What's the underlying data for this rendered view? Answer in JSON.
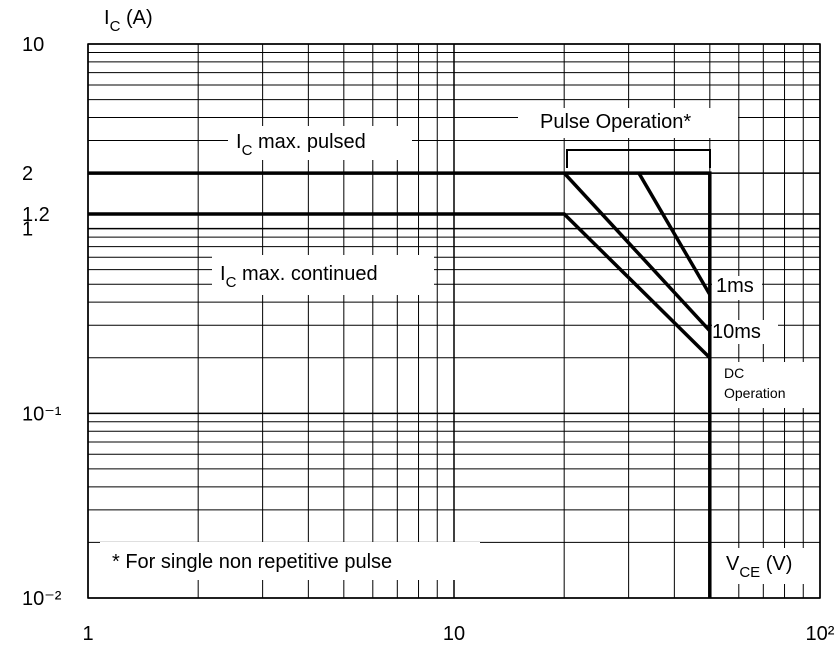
{
  "chart_data": {
    "type": "line",
    "log_x": true,
    "log_y": true,
    "grid": true,
    "minor_grid": true,
    "xlim": [
      1,
      100
    ],
    "ylim": [
      0.01,
      10
    ],
    "xticks": [
      1,
      10,
      {
        "value": 100,
        "label": "10²"
      }
    ],
    "yticks": [
      {
        "value": 0.01,
        "label": "10⁻²"
      },
      {
        "value": 0.1,
        "label": "10⁻¹"
      },
      1,
      1.2,
      2,
      10
    ],
    "series": [
      {
        "color": "#000000",
        "x": [
          1,
          50,
          50
        ],
        "values": [
          2,
          2,
          0.01
        ]
      },
      {
        "color": "#000000",
        "x": [
          1,
          20,
          50
        ],
        "values": [
          1.2,
          1.2,
          0.2
        ]
      },
      {
        "color": "#000000",
        "x": [
          20,
          50
        ],
        "values": [
          2,
          0.28
        ]
      },
      {
        "color": "#000000",
        "x": [
          32,
          50
        ],
        "values": [
          2,
          0.44
        ]
      }
    ],
    "annotations": [
      {
        "text": "I",
        "sub": "C",
        "rest": " (A)"
      },
      {
        "text": "I",
        "sub": "C",
        "rest": " max. pulsed"
      },
      {
        "text": "I",
        "sub": "C",
        "rest": " max. continued"
      },
      {
        "text": "Pulse Operation*"
      },
      {
        "text": "1ms"
      },
      {
        "text": "10ms"
      },
      {
        "text": "DC"
      },
      {
        "text": "Operation"
      },
      {
        "text": "* For single non repetitive pulse"
      },
      {
        "text": "V",
        "sub": "CE",
        "rest": "  (V)"
      }
    ]
  }
}
